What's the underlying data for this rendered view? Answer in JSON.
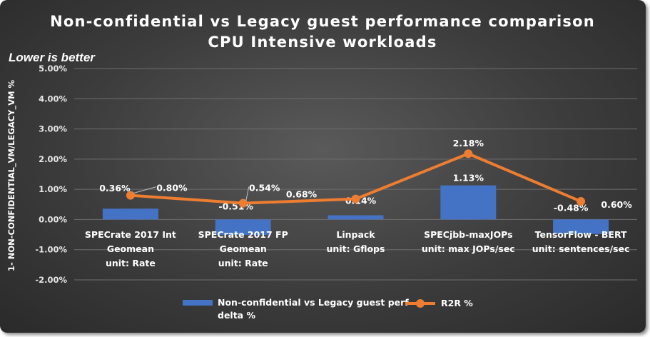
{
  "chart_data": {
    "type": "bar+line",
    "title": "Non-confidential vs Legacy guest performance comparison",
    "subtitle": "CPU Intensive workloads",
    "annotation": "Lower is better",
    "ylabel": "1- NON-CONFIDENTIAL_VM/LEGACY_VM %",
    "ylim": [
      -2.0,
      5.0
    ],
    "yticks": [
      "5.00%",
      "4.00%",
      "3.00%",
      "2.00%",
      "1.00%",
      "0.00%",
      "-1.00%",
      "-2.00%"
    ],
    "ytick_values": [
      5,
      4,
      3,
      2,
      1,
      0,
      -1,
      -2
    ],
    "categories": [
      [
        "SPECrate 2017 Int",
        "Geomean",
        "unit: Rate"
      ],
      [
        "SPECrate 2017 FP",
        "Geomean",
        "unit: Rate"
      ],
      [
        "Linpack",
        "unit: Gflops"
      ],
      [
        "SPECjbb-maxJOPs",
        "unit: max JOPs/sec"
      ],
      [
        "TensorFlow - BERT",
        "unit: sentences/sec"
      ]
    ],
    "series": [
      {
        "name": "Non-confidential vs Legacy guest perf delta %",
        "type": "bar",
        "color": "#4472c4",
        "values": [
          0.36,
          -0.51,
          0.14,
          1.13,
          -0.48
        ],
        "labels": [
          "0.36%",
          "-0.51%",
          "0.14%",
          "1.13%",
          "-0.48%"
        ]
      },
      {
        "name": "R2R %",
        "type": "line",
        "color": "#ed7d31",
        "values": [
          0.8,
          0.54,
          0.68,
          2.18,
          0.6
        ],
        "labels": [
          "0.80%",
          "0.54%",
          "0.68%",
          "2.18%",
          "0.60%"
        ]
      }
    ],
    "legend_position": "bottom",
    "legend": [
      "Non-confidential vs Legacy guest perf",
      "delta %",
      "R2R %"
    ],
    "grid": true
  }
}
